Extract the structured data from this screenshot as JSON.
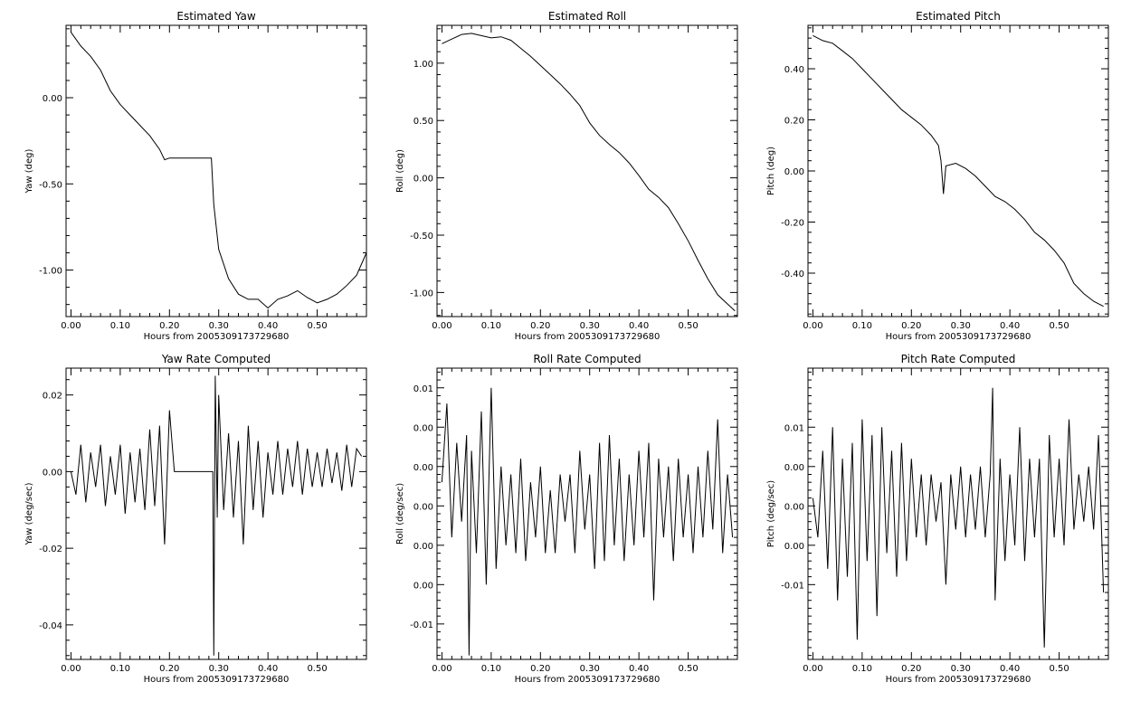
{
  "chart_data": [
    {
      "type": "line",
      "title": "Estimated Yaw",
      "xlabel": "Hours from 2005309173729680",
      "ylabel": "Yaw (deg)",
      "xlim": [
        -0.01,
        0.6
      ],
      "ylim": [
        -1.27,
        0.42
      ],
      "xticks": [
        "0.00",
        "0.10",
        "0.20",
        "0.30",
        "0.40",
        "0.50"
      ],
      "xtick_values": [
        0.0,
        0.1,
        0.2,
        0.3,
        0.4,
        0.5
      ],
      "yticks": [
        "0.00",
        "-0.50",
        "-1.00"
      ],
      "ytick_values": [
        0.0,
        -0.5,
        -1.0
      ],
      "series": [
        {
          "x": [
            0.0,
            0.02,
            0.04,
            0.06,
            0.08,
            0.1,
            0.12,
            0.14,
            0.16,
            0.18,
            0.19,
            0.2,
            0.25,
            0.285,
            0.29,
            0.3,
            0.32,
            0.34,
            0.36,
            0.38,
            0.4,
            0.42,
            0.44,
            0.46,
            0.48,
            0.5,
            0.52,
            0.54,
            0.56,
            0.58,
            0.6
          ],
          "y": [
            0.38,
            0.3,
            0.24,
            0.16,
            0.04,
            -0.04,
            -0.1,
            -0.16,
            -0.22,
            -0.3,
            -0.36,
            -0.35,
            -0.35,
            -0.35,
            -0.62,
            -0.88,
            -1.05,
            -1.14,
            -1.17,
            -1.17,
            -1.22,
            -1.17,
            -1.15,
            -1.12,
            -1.16,
            -1.19,
            -1.17,
            -1.14,
            -1.09,
            -1.03,
            -0.9
          ]
        }
      ]
    },
    {
      "type": "line",
      "title": "Estimated Roll",
      "xlabel": "Hours from 2005309173729680",
      "ylabel": "Roll (deg)",
      "xlim": [
        -0.01,
        0.6
      ],
      "ylim": [
        -1.21,
        1.33
      ],
      "xticks": [
        "0.00",
        "0.10",
        "0.20",
        "0.30",
        "0.40",
        "0.50"
      ],
      "xtick_values": [
        0.0,
        0.1,
        0.2,
        0.3,
        0.4,
        0.5
      ],
      "yticks": [
        "1.00",
        "0.50",
        "0.00",
        "-0.50",
        "-1.00"
      ],
      "ytick_values": [
        1.0,
        0.5,
        0.0,
        -0.5,
        -1.0
      ],
      "series": [
        {
          "x": [
            0.0,
            0.02,
            0.04,
            0.06,
            0.08,
            0.1,
            0.12,
            0.14,
            0.16,
            0.18,
            0.2,
            0.22,
            0.24,
            0.26,
            0.28,
            0.3,
            0.32,
            0.34,
            0.36,
            0.38,
            0.4,
            0.42,
            0.44,
            0.46,
            0.48,
            0.5,
            0.52,
            0.54,
            0.56,
            0.58,
            0.595
          ],
          "y": [
            1.17,
            1.21,
            1.25,
            1.26,
            1.24,
            1.22,
            1.23,
            1.2,
            1.13,
            1.06,
            0.98,
            0.9,
            0.82,
            0.73,
            0.63,
            0.48,
            0.37,
            0.29,
            0.22,
            0.13,
            0.02,
            -0.1,
            -0.17,
            -0.26,
            -0.4,
            -0.55,
            -0.72,
            -0.88,
            -1.02,
            -1.1,
            -1.16
          ]
        }
      ]
    },
    {
      "type": "line",
      "title": "Estimated Pitch",
      "xlabel": "Hours from 2005309173729680",
      "ylabel": "Pitch (deg)",
      "xlim": [
        -0.01,
        0.6
      ],
      "ylim": [
        -0.57,
        0.57
      ],
      "xticks": [
        "0.00",
        "0.10",
        "0.20",
        "0.30",
        "0.40",
        "0.50"
      ],
      "xtick_values": [
        0.0,
        0.1,
        0.2,
        0.3,
        0.4,
        0.5
      ],
      "yticks": [
        "0.40",
        "0.20",
        "0.00",
        "-0.20",
        "-0.40"
      ],
      "ytick_values": [
        0.4,
        0.2,
        0.0,
        -0.2,
        -0.4
      ],
      "series": [
        {
          "x": [
            0.0,
            0.02,
            0.04,
            0.06,
            0.08,
            0.1,
            0.12,
            0.14,
            0.16,
            0.18,
            0.2,
            0.22,
            0.24,
            0.255,
            0.26,
            0.265,
            0.27,
            0.29,
            0.31,
            0.33,
            0.35,
            0.37,
            0.39,
            0.41,
            0.43,
            0.45,
            0.47,
            0.49,
            0.51,
            0.53,
            0.55,
            0.57,
            0.59
          ],
          "y": [
            0.53,
            0.51,
            0.5,
            0.47,
            0.44,
            0.4,
            0.36,
            0.32,
            0.28,
            0.24,
            0.21,
            0.18,
            0.14,
            0.1,
            0.04,
            -0.09,
            0.02,
            0.03,
            0.01,
            -0.02,
            -0.06,
            -0.1,
            -0.12,
            -0.15,
            -0.19,
            -0.24,
            -0.27,
            -0.31,
            -0.36,
            -0.44,
            -0.48,
            -0.51,
            -0.53
          ]
        }
      ]
    },
    {
      "type": "line",
      "title": "Yaw Rate Computed",
      "xlabel": "Hours from 2005309173729680",
      "ylabel": "Yaw (deg/sec)",
      "xlim": [
        -0.01,
        0.6
      ],
      "ylim": [
        -0.049,
        0.027
      ],
      "xticks": [
        "0.00",
        "0.10",
        "0.20",
        "0.30",
        "0.40",
        "0.50"
      ],
      "xtick_values": [
        0.0,
        0.1,
        0.2,
        0.3,
        0.4,
        0.5
      ],
      "yticks": [
        "0.02",
        "0.00",
        "-0.02",
        "-0.04"
      ],
      "ytick_values": [
        0.02,
        0.0,
        -0.02,
        -0.04
      ],
      "series": [
        {
          "x": [
            0.0,
            0.01,
            0.02,
            0.03,
            0.04,
            0.05,
            0.06,
            0.07,
            0.08,
            0.09,
            0.1,
            0.11,
            0.12,
            0.13,
            0.14,
            0.15,
            0.16,
            0.17,
            0.18,
            0.19,
            0.2,
            0.21,
            0.285,
            0.288,
            0.29,
            0.293,
            0.297,
            0.3,
            0.31,
            0.32,
            0.33,
            0.34,
            0.35,
            0.36,
            0.37,
            0.38,
            0.39,
            0.4,
            0.41,
            0.42,
            0.43,
            0.44,
            0.45,
            0.46,
            0.47,
            0.48,
            0.49,
            0.5,
            0.51,
            0.52,
            0.53,
            0.54,
            0.55,
            0.56,
            0.57,
            0.58,
            0.59
          ],
          "y": [
            0.0,
            -0.006,
            0.007,
            -0.008,
            0.005,
            -0.004,
            0.007,
            -0.009,
            0.004,
            -0.006,
            0.007,
            -0.011,
            0.005,
            -0.008,
            0.006,
            -0.01,
            0.011,
            -0.009,
            0.012,
            -0.019,
            0.016,
            0.0,
            0.0,
            0.0,
            -0.048,
            0.025,
            -0.012,
            0.02,
            -0.01,
            0.01,
            -0.012,
            0.008,
            -0.019,
            0.012,
            -0.01,
            0.008,
            -0.012,
            0.005,
            -0.006,
            0.008,
            -0.006,
            0.006,
            -0.004,
            0.008,
            -0.006,
            0.006,
            -0.004,
            0.005,
            -0.004,
            0.006,
            -0.003,
            0.005,
            -0.005,
            0.007,
            -0.004,
            0.006,
            0.004
          ]
        }
      ]
    },
    {
      "type": "line",
      "title": "Roll Rate Computed",
      "xlabel": "Hours from 2005309173729680",
      "ylabel": "Roll (deg/sec)",
      "xlim": [
        -0.01,
        0.6
      ],
      "ylim": [
        -0.0195,
        0.0175
      ],
      "xticks": [
        "0.00",
        "0.10",
        "0.20",
        "0.30",
        "0.40",
        "0.50"
      ],
      "xtick_values": [
        0.0,
        0.1,
        0.2,
        0.3,
        0.4,
        0.5
      ],
      "yticks": [
        "0.01",
        "0.00",
        "0.00",
        "0.00",
        "0.00",
        "0.00",
        "-0.01"
      ],
      "ytick_values": [
        0.015,
        0.01,
        0.005,
        0.0,
        -0.005,
        -0.01,
        -0.015
      ],
      "series": [
        {
          "x": [
            0.0,
            0.01,
            0.02,
            0.03,
            0.04,
            0.05,
            0.055,
            0.06,
            0.07,
            0.08,
            0.09,
            0.1,
            0.11,
            0.12,
            0.13,
            0.14,
            0.15,
            0.16,
            0.17,
            0.18,
            0.19,
            0.2,
            0.21,
            0.22,
            0.23,
            0.24,
            0.25,
            0.26,
            0.27,
            0.28,
            0.29,
            0.3,
            0.31,
            0.32,
            0.33,
            0.34,
            0.35,
            0.36,
            0.37,
            0.38,
            0.39,
            0.4,
            0.41,
            0.42,
            0.43,
            0.44,
            0.45,
            0.46,
            0.47,
            0.48,
            0.49,
            0.5,
            0.51,
            0.52,
            0.53,
            0.54,
            0.55,
            0.56,
            0.57,
            0.58,
            0.59
          ],
          "y": [
            0.003,
            0.013,
            -0.004,
            0.008,
            -0.002,
            0.009,
            -0.019,
            0.007,
            -0.006,
            0.012,
            -0.01,
            0.015,
            -0.008,
            0.005,
            -0.005,
            0.004,
            -0.006,
            0.006,
            -0.007,
            0.003,
            -0.004,
            0.005,
            -0.006,
            0.002,
            -0.006,
            0.004,
            -0.002,
            0.004,
            -0.006,
            0.007,
            -0.003,
            0.004,
            -0.008,
            0.008,
            -0.007,
            0.009,
            -0.005,
            0.006,
            -0.007,
            0.004,
            -0.005,
            0.007,
            -0.004,
            0.008,
            -0.012,
            0.006,
            -0.004,
            0.005,
            -0.007,
            0.006,
            -0.004,
            0.004,
            -0.006,
            0.005,
            -0.004,
            0.007,
            -0.003,
            0.011,
            -0.006,
            0.004,
            -0.004
          ]
        }
      ]
    },
    {
      "type": "line",
      "title": "Pitch Rate Computed",
      "xlabel": "Hours from 2005309173729680",
      "ylabel": "Pitch (deg/sec)",
      "xlim": [
        -0.01,
        0.6
      ],
      "ylim": [
        -0.0195,
        0.0175
      ],
      "xticks": [
        "0.00",
        "0.10",
        "0.20",
        "0.30",
        "0.40",
        "0.50"
      ],
      "xtick_values": [
        0.0,
        0.1,
        0.2,
        0.3,
        0.4,
        0.5
      ],
      "yticks": [
        "0.01",
        "0.00",
        "0.00",
        "0.00",
        "-0.01"
      ],
      "ytick_values": [
        0.01,
        0.005,
        0.0,
        -0.005,
        -0.01
      ],
      "series": [
        {
          "x": [
            0.0,
            0.01,
            0.02,
            0.03,
            0.04,
            0.05,
            0.06,
            0.07,
            0.08,
            0.09,
            0.1,
            0.11,
            0.12,
            0.13,
            0.14,
            0.15,
            0.16,
            0.17,
            0.18,
            0.19,
            0.2,
            0.21,
            0.22,
            0.23,
            0.24,
            0.25,
            0.26,
            0.27,
            0.28,
            0.29,
            0.3,
            0.31,
            0.32,
            0.33,
            0.34,
            0.35,
            0.36,
            0.365,
            0.37,
            0.38,
            0.39,
            0.4,
            0.41,
            0.42,
            0.43,
            0.44,
            0.45,
            0.46,
            0.47,
            0.48,
            0.49,
            0.5,
            0.51,
            0.52,
            0.53,
            0.54,
            0.55,
            0.56,
            0.57,
            0.58,
            0.59
          ],
          "y": [
            0.001,
            -0.004,
            0.007,
            -0.008,
            0.01,
            -0.012,
            0.006,
            -0.009,
            0.008,
            -0.017,
            0.011,
            -0.007,
            0.009,
            -0.014,
            0.01,
            -0.006,
            0.007,
            -0.009,
            0.008,
            -0.007,
            0.006,
            -0.004,
            0.004,
            -0.005,
            0.004,
            -0.002,
            0.003,
            -0.01,
            0.004,
            -0.003,
            0.005,
            -0.004,
            0.004,
            -0.003,
            0.005,
            -0.004,
            0.004,
            0.015,
            -0.012,
            0.006,
            -0.007,
            0.004,
            -0.005,
            0.01,
            -0.007,
            0.006,
            -0.004,
            0.006,
            -0.018,
            0.009,
            -0.004,
            0.006,
            -0.005,
            0.011,
            -0.003,
            0.004,
            -0.002,
            0.005,
            -0.003,
            0.009,
            -0.011
          ]
        }
      ]
    }
  ]
}
